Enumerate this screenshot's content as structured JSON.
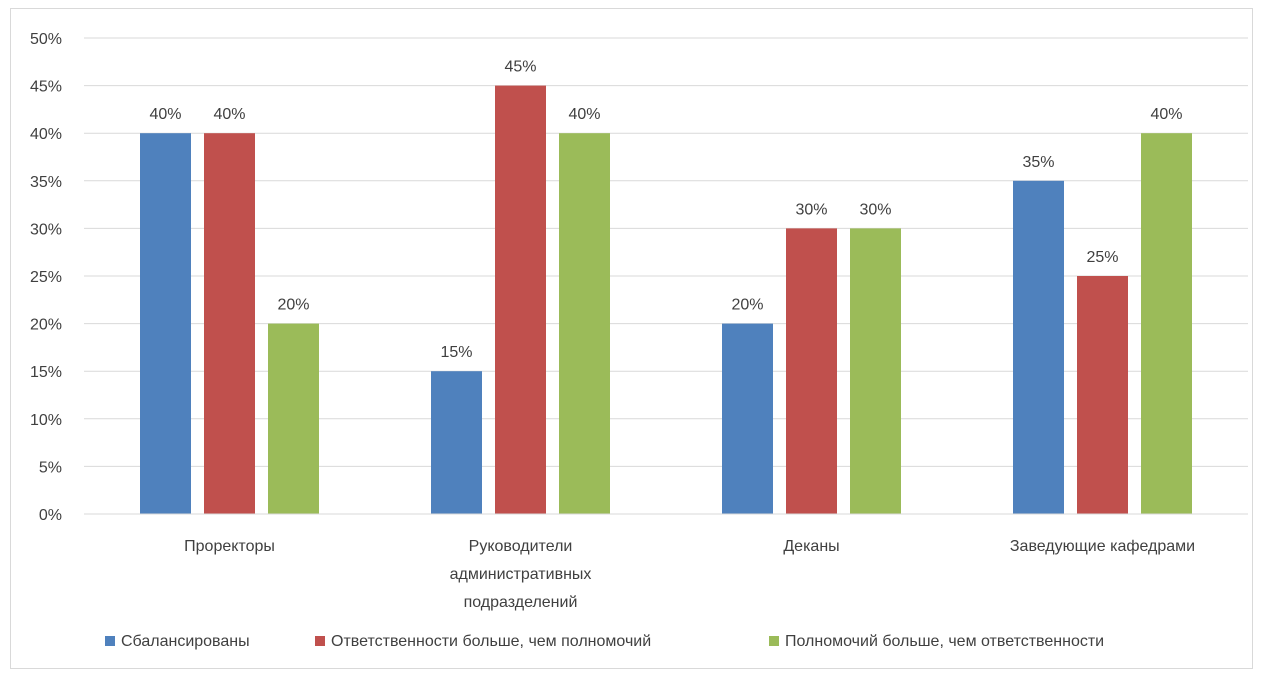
{
  "chart_data": {
    "type": "bar",
    "title": "",
    "xlabel": "",
    "ylabel": "",
    "ylim": [
      0,
      50
    ],
    "y_ticks": [
      0,
      5,
      10,
      15,
      20,
      25,
      30,
      35,
      40,
      45,
      50
    ],
    "y_tick_labels": [
      "0%",
      "5%",
      "10%",
      "15%",
      "20%",
      "25%",
      "30%",
      "35%",
      "40%",
      "45%",
      "50%"
    ],
    "grid": true,
    "legend_position": "bottom",
    "categories": [
      [
        "Проректоры"
      ],
      [
        "Руководители",
        "административных",
        "подразделений"
      ],
      [
        "Деканы"
      ],
      [
        "Заведующие кафедрами"
      ]
    ],
    "series": [
      {
        "name": "Сбалансированы",
        "color": "#4f81bd",
        "values": [
          40,
          15,
          20,
          35
        ],
        "labels": [
          "40%",
          "15%",
          "20%",
          "35%"
        ]
      },
      {
        "name": "Ответственности больше, чем полномочий",
        "color": "#c0504d",
        "values": [
          40,
          45,
          30,
          25
        ],
        "labels": [
          "40%",
          "45%",
          "30%",
          "25%"
        ]
      },
      {
        "name": "Полномочий больше, чем ответственности",
        "color": "#9bbb59",
        "values": [
          20,
          40,
          30,
          40
        ],
        "labels": [
          "20%",
          "40%",
          "30%",
          "40%"
        ]
      }
    ]
  }
}
